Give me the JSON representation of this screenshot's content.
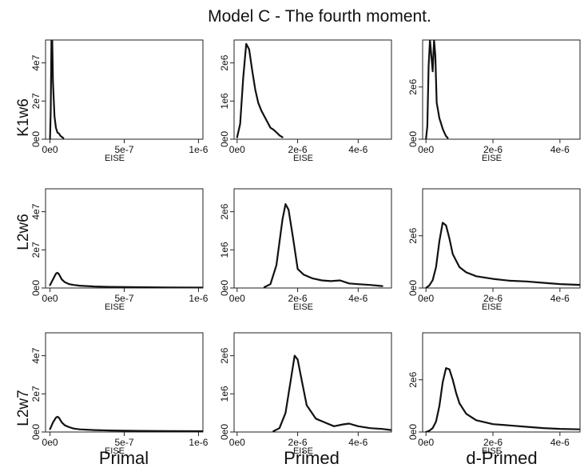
{
  "title": "Model C - The fourth moment.",
  "columns": [
    "Primal",
    "Primed",
    "d-Primed"
  ],
  "rows": [
    "K1w6",
    "L2w6",
    "L2w7"
  ],
  "chart_data": [
    {
      "type": "line",
      "row": "K1w6",
      "column": "Primal",
      "xlabel": "EISE",
      "xlim": [
        -3e-08,
        1.03e-06
      ],
      "ylim": [
        0,
        52000000.0
      ],
      "xticks": [
        0,
        5e-07,
        1e-06
      ],
      "xtick_labels": [
        "0e0",
        "5e-7",
        "1e-6"
      ],
      "yticks": [
        0,
        20000000.0,
        40000000.0
      ],
      "ytick_labels": [
        "0e0",
        "2e7",
        "4e7"
      ],
      "x": [
        0,
        5e-09,
        1e-08,
        1.5e-08,
        2e-08,
        3e-08,
        4e-08,
        5e-08,
        6e-08,
        7e-08,
        8e-08,
        9e-08
      ],
      "y": [
        0,
        15000000.0,
        60000000.0,
        55000000.0,
        30000000.0,
        12000000.0,
        6000000.0,
        3500000.0,
        3000000.0,
        1800000.0,
        1200000.0,
        600000.0
      ]
    },
    {
      "type": "line",
      "row": "K1w6",
      "column": "Primed",
      "xlabel": "EISE",
      "xlim": [
        -1e-07,
        5.1e-06
      ],
      "ylim": [
        0,
        2600000.0
      ],
      "xticks": [
        0,
        2e-06,
        4e-06
      ],
      "xtick_labels": [
        "0e0",
        "2e-6",
        "4e-6"
      ],
      "yticks": [
        0,
        1000000.0,
        2000000.0
      ],
      "ytick_labels": [
        "0e0",
        "1e6",
        "2e6"
      ],
      "x": [
        0,
        1e-07,
        2e-07,
        3e-07,
        4e-07,
        5e-07,
        6e-07,
        7e-07,
        8e-07,
        9e-07,
        1e-06,
        1.1e-06,
        1.2e-06,
        1.3e-06,
        1.4e-06,
        1.5e-06
      ],
      "y": [
        50000.0,
        400000.0,
        1600000.0,
        2500000.0,
        2350000.0,
        1800000.0,
        1300000.0,
        950000.0,
        750000.0,
        600000.0,
        450000.0,
        300000.0,
        250000.0,
        180000.0,
        100000.0,
        50000.0
      ]
    },
    {
      "type": "line",
      "row": "K1w6",
      "column": "d-Primed",
      "xlabel": "EISE",
      "xlim": [
        -1e-07,
        4.6e-06
      ],
      "ylim": [
        0,
        3800000.0
      ],
      "xticks": [
        0,
        2e-06,
        4e-06
      ],
      "xtick_labels": [
        "0e0",
        "2e-6",
        "4e-6"
      ],
      "yticks": [
        0,
        2000000.0
      ],
      "ytick_labels": [
        "0e0",
        "2e6"
      ],
      "x": [
        0,
        4e-08,
        8e-08,
        1.2e-07,
        1.6e-07,
        2e-07,
        2.4e-07,
        2.8e-07,
        3.2e-07,
        3.6e-07,
        4e-07,
        4.5e-07,
        5e-07,
        5.5e-07,
        6e-07,
        6.5e-07
      ],
      "y": [
        0,
        500000.0,
        2800000.0,
        4500000.0,
        3200000.0,
        2600000.0,
        4600000.0,
        3200000.0,
        1400000.0,
        1100000.0,
        800000.0,
        600000.0,
        400000.0,
        250000.0,
        120000.0,
        50000.0
      ]
    },
    {
      "type": "line",
      "row": "L2w6",
      "column": "Primal",
      "xlabel": "EISE",
      "xlim": [
        -3e-08,
        1.03e-06
      ],
      "ylim": [
        0,
        52000000.0
      ],
      "xticks": [
        0,
        5e-07,
        1e-06
      ],
      "xtick_labels": [
        "0e0",
        "5e-7",
        "1e-6"
      ],
      "yticks": [
        0,
        20000000.0,
        40000000.0
      ],
      "ytick_labels": [
        "0e0",
        "2e7",
        "4e7"
      ],
      "x": [
        0,
        2e-08,
        4e-08,
        5e-08,
        6e-08,
        8e-08,
        1e-07,
        1.3e-07,
        1.6e-07,
        2e-07,
        3e-07,
        4e-07,
        6e-07,
        8e-07,
        1.03e-06
      ],
      "y": [
        1500000.0,
        4500000.0,
        7500000.0,
        8000000.0,
        7300000.0,
        4500000.0,
        3000000.0,
        2000000.0,
        1600000.0,
        1200000.0,
        800000.0,
        600000.0,
        400000.0,
        300000.0,
        200000.0
      ]
    },
    {
      "type": "line",
      "row": "L2w6",
      "column": "Primed",
      "xlabel": "EISE",
      "xlim": [
        -1e-07,
        5.1e-06
      ],
      "ylim": [
        0,
        2600000.0
      ],
      "xticks": [
        0,
        2e-06,
        4e-06
      ],
      "xtick_labels": [
        "0e0",
        "2e-6",
        "4e-6"
      ],
      "yticks": [
        0,
        1000000.0,
        2000000.0
      ],
      "ytick_labels": [
        "0e0",
        "1e6",
        "2e6"
      ],
      "x": [
        9e-07,
        1.1e-06,
        1.3e-06,
        1.5e-06,
        1.6e-06,
        1.7e-06,
        1.85e-06,
        2e-06,
        2.2e-06,
        2.5e-06,
        2.8e-06,
        3.1e-06,
        3.4e-06,
        3.7e-06,
        4e-06,
        4.4e-06,
        4.8e-06
      ],
      "y": [
        20000.0,
        100000.0,
        600000.0,
        1800000.0,
        2200000.0,
        2050000.0,
        1300000.0,
        500000.0,
        350000.0,
        250000.0,
        200000.0,
        180000.0,
        200000.0,
        120000.0,
        100000.0,
        80000.0,
        50000.0
      ]
    },
    {
      "type": "line",
      "row": "L2w6",
      "column": "d-Primed",
      "xlabel": "EISE",
      "xlim": [
        -1e-07,
        4.6e-06
      ],
      "ylim": [
        0,
        3800000.0
      ],
      "xticks": [
        0,
        2e-06,
        4e-06
      ],
      "xtick_labels": [
        "0e0",
        "2e-6",
        "4e-6"
      ],
      "yticks": [
        0,
        2000000.0
      ],
      "ytick_labels": [
        "0e0",
        "2e6"
      ],
      "x": [
        0,
        1e-07,
        2e-07,
        3e-07,
        4e-07,
        5e-07,
        6e-07,
        7e-07,
        8e-07,
        1e-06,
        1.2e-06,
        1.5e-06,
        2e-06,
        2.5e-06,
        3e-06,
        3.5e-06,
        4e-06,
        4.6e-06
      ],
      "y": [
        0,
        100000.0,
        300000.0,
        800000.0,
        1800000.0,
        2500000.0,
        2400000.0,
        1900000.0,
        1300000.0,
        800000.0,
        600000.0,
        450000.0,
        350000.0,
        280000.0,
        250000.0,
        200000.0,
        150000.0,
        120000.0
      ]
    },
    {
      "type": "line",
      "row": "L2w7",
      "column": "Primal",
      "xlabel": "EISE",
      "xlim": [
        -3e-08,
        1.03e-06
      ],
      "ylim": [
        0,
        52000000.0
      ],
      "xticks": [
        0,
        5e-07,
        1e-06
      ],
      "xtick_labels": [
        "0e0",
        "5e-7",
        "1e-6"
      ],
      "yticks": [
        0,
        20000000.0,
        40000000.0
      ],
      "ytick_labels": [
        "0e0",
        "2e7",
        "4e7"
      ],
      "x": [
        0,
        2e-08,
        4e-08,
        5e-08,
        6e-08,
        8e-08,
        1e-07,
        1.3e-07,
        1.6e-07,
        2e-07,
        3e-07,
        4e-07,
        6e-07,
        8e-07,
        1.03e-06
      ],
      "y": [
        1500000.0,
        5000000.0,
        7500000.0,
        8000000.0,
        7500000.0,
        5000000.0,
        3500000.0,
        2500000.0,
        1800000.0,
        1400000.0,
        1000000.0,
        800000.0,
        600000.0,
        500000.0,
        400000.0
      ]
    },
    {
      "type": "line",
      "row": "L2w7",
      "column": "Primed",
      "xlabel": "EISE",
      "xlim": [
        -1e-07,
        5.1e-06
      ],
      "ylim": [
        0,
        2600000.0
      ],
      "xticks": [
        0,
        2e-06,
        4e-06
      ],
      "xtick_labels": [
        "0e0",
        "2e-6",
        "4e-6"
      ],
      "yticks": [
        0,
        1000000.0,
        2000000.0
      ],
      "ytick_labels": [
        "0e0",
        "1e6",
        "2e6"
      ],
      "x": [
        1.2e-06,
        1.4e-06,
        1.6e-06,
        1.8e-06,
        1.9e-06,
        2e-06,
        2.1e-06,
        2.3e-06,
        2.6e-06,
        2.9e-06,
        3.2e-06,
        3.5e-06,
        3.7e-06,
        4e-06,
        4.4e-06,
        4.8e-06,
        5.1e-06
      ],
      "y": [
        20000.0,
        100000.0,
        500000.0,
        1500000.0,
        2000000.0,
        1900000.0,
        1500000.0,
        700000.0,
        350000.0,
        250000.0,
        150000.0,
        200000.0,
        220000.0,
        150000.0,
        100000.0,
        80000.0,
        50000.0
      ]
    },
    {
      "type": "line",
      "row": "L2w7",
      "column": "d-Primed",
      "xlabel": "EISE",
      "xlim": [
        -1e-07,
        4.6e-06
      ],
      "ylim": [
        0,
        3800000.0
      ],
      "xticks": [
        0,
        2e-06,
        4e-06
      ],
      "xtick_labels": [
        "0e0",
        "2e-6",
        "4e-6"
      ],
      "yticks": [
        0,
        2000000.0
      ],
      "ytick_labels": [
        "0e0",
        "2e6"
      ],
      "x": [
        0,
        1e-07,
        2e-07,
        3e-07,
        4e-07,
        5e-07,
        6e-07,
        7e-07,
        8e-07,
        9e-07,
        1e-06,
        1.2e-06,
        1.5e-06,
        2e-06,
        2.5e-06,
        3e-06,
        3.5e-06,
        4e-06,
        4.6e-06
      ],
      "y": [
        0,
        50000.0,
        150000.0,
        400000.0,
        1000000.0,
        1900000.0,
        2450000.0,
        2400000.0,
        2000000.0,
        1500000.0,
        1100000.0,
        700000.0,
        450000.0,
        300000.0,
        250000.0,
        200000.0,
        150000.0,
        120000.0,
        100000.0
      ]
    }
  ]
}
